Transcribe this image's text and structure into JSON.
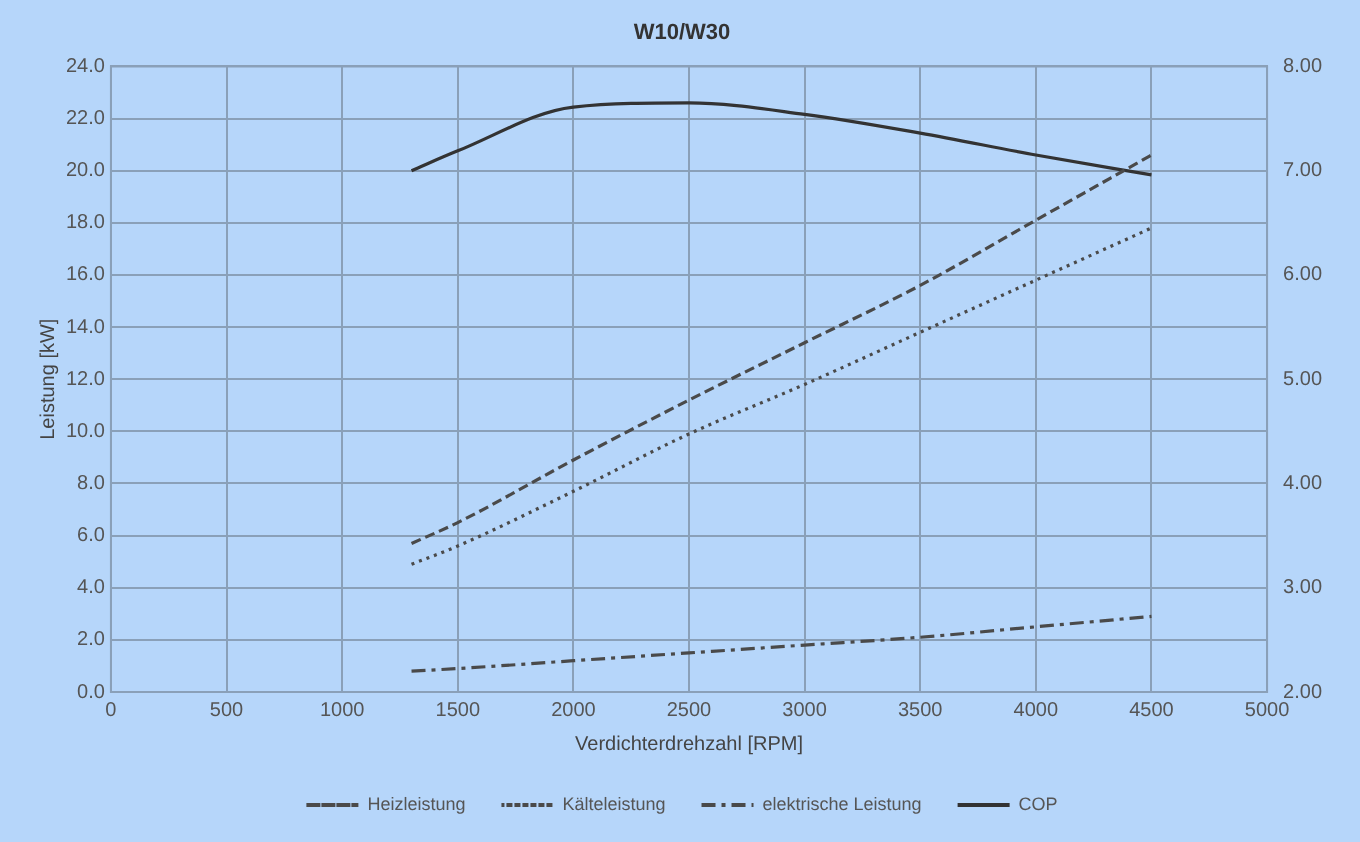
{
  "chart_data": {
    "type": "line",
    "title": "W10/W30",
    "xlabel": "Verdichterdrehzahl [RPM]",
    "ylabel": "Leistung [kW]",
    "x": [
      1300,
      1500,
      2000,
      2500,
      3000,
      3500,
      4000,
      4500
    ],
    "series": [
      {
        "name": "Heizleistung",
        "color": "#4a4a4a",
        "line_style": "dashed",
        "values": [
          5.7,
          6.5,
          8.9,
          11.2,
          13.4,
          15.6,
          18.1,
          20.6
        ]
      },
      {
        "name": "Kälteleistung",
        "color": "#4a4a4a",
        "line_style": "dotted",
        "values": [
          4.9,
          5.6,
          7.7,
          9.9,
          11.8,
          13.8,
          15.8,
          17.8
        ]
      },
      {
        "name": "elektrische Leistung",
        "color": "#4a4a4a",
        "line_style": "dashdot",
        "values": [
          0.8,
          0.9,
          1.2,
          1.5,
          1.8,
          2.1,
          2.5,
          2.9
        ]
      },
      {
        "name": "COP",
        "color": "#333333",
        "line_style": "solid",
        "axis": "y2",
        "values": [
          7.0,
          7.19,
          7.61,
          7.65,
          7.54,
          7.36,
          7.15,
          6.96
        ]
      }
    ],
    "xlim": [
      0,
      5000
    ],
    "xticks": [
      0,
      500,
      1000,
      1500,
      2000,
      2500,
      3000,
      3500,
      4000,
      4500,
      5000
    ],
    "ylim": [
      0,
      24
    ],
    "yticks": [
      {
        "value": 0,
        "label": "0.0"
      },
      {
        "value": 2,
        "label": "2.0"
      },
      {
        "value": 4,
        "label": "4.0"
      },
      {
        "value": 6,
        "label": "6.0"
      },
      {
        "value": 8,
        "label": "8.0"
      },
      {
        "value": 10,
        "label": "10.0"
      },
      {
        "value": 12,
        "label": "12.0"
      },
      {
        "value": 14,
        "label": "14.0"
      },
      {
        "value": 16,
        "label": "16.0"
      },
      {
        "value": 18,
        "label": "18.0"
      },
      {
        "value": 20,
        "label": "20.0"
      },
      {
        "value": 22,
        "label": "22.0"
      },
      {
        "value": 24,
        "label": "24.0"
      }
    ],
    "y2lim": [
      2,
      8
    ],
    "y2ticks": [
      {
        "value": 2,
        "label": "2.00"
      },
      {
        "value": 3,
        "label": "3.00"
      },
      {
        "value": 4,
        "label": "4.00"
      },
      {
        "value": 5,
        "label": "5.00"
      },
      {
        "value": 6,
        "label": "6.00"
      },
      {
        "value": 7,
        "label": "7.00"
      },
      {
        "value": 8,
        "label": "8.00"
      }
    ],
    "grid": true,
    "legend": "bottom",
    "marker": "none"
  }
}
